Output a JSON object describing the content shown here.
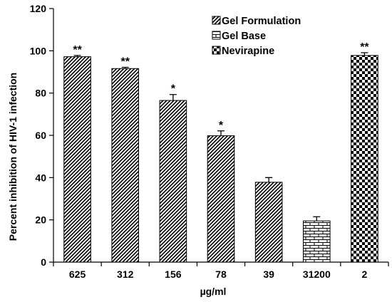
{
  "chart_data": {
    "type": "bar",
    "title": "",
    "xlabel": "µg/ml",
    "ylabel": "Percent inhibition of HIV-1 infection",
    "ylim": [
      0,
      120
    ],
    "yticks": [
      0,
      20,
      40,
      60,
      80,
      100,
      120
    ],
    "grid": false,
    "legend_position": "top-right",
    "categories": [
      "625",
      "312",
      "156",
      "78",
      "39",
      "31200",
      "2"
    ],
    "series": [
      {
        "name": "Gel Formulation",
        "pattern": "diagonal-hatch",
        "color": "#000000"
      },
      {
        "name": "Gel Base",
        "pattern": "brick",
        "color": "#000000"
      },
      {
        "name": "Nevirapine",
        "pattern": "checkerboard",
        "color": "#000000"
      }
    ],
    "bars": [
      {
        "category": "625",
        "series": "Gel Formulation",
        "value": 97.2,
        "error": 0.6,
        "significance": "**"
      },
      {
        "category": "312",
        "series": "Gel Formulation",
        "value": 91.6,
        "error": 0.6,
        "significance": "**"
      },
      {
        "category": "156",
        "series": "Gel Formulation",
        "value": 76.5,
        "error": 2.8,
        "significance": "*"
      },
      {
        "category": "78",
        "series": "Gel Formulation",
        "value": 59.8,
        "error": 2.3,
        "significance": "*"
      },
      {
        "category": "39",
        "series": "Gel Formulation",
        "value": 37.8,
        "error": 2.2,
        "significance": ""
      },
      {
        "category": "31200",
        "series": "Gel Base",
        "value": 19.5,
        "error": 2.0,
        "significance": ""
      },
      {
        "category": "2",
        "series": "Nevirapine",
        "value": 97.8,
        "error": 1.3,
        "significance": "**"
      }
    ]
  }
}
